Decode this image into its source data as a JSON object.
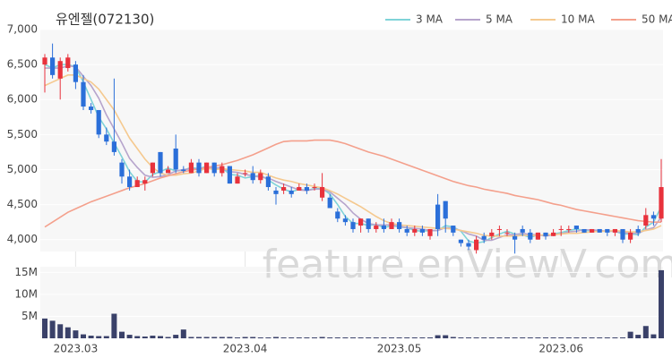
{
  "chart_data": [
    {
      "type": "candlestick",
      "title": "유엔젤(072130)",
      "watermark": "feature.enViewV.com",
      "categories": [
        null,
        null,
        null,
        null,
        "2023.03",
        null,
        null,
        null,
        null,
        null,
        null,
        null,
        null,
        null,
        null,
        null,
        null,
        null,
        null,
        null,
        null,
        null,
        null,
        null,
        null,
        null,
        "2023.04",
        null,
        null,
        null,
        null,
        null,
        null,
        null,
        null,
        null,
        null,
        null,
        null,
        null,
        null,
        null,
        null,
        null,
        null,
        null,
        "2023.05",
        null,
        null,
        null,
        null,
        null,
        null,
        null,
        null,
        null,
        null,
        null,
        null,
        null,
        null,
        null,
        null,
        null,
        null,
        null,
        null,
        "2023.06",
        null,
        null,
        null,
        null,
        null,
        null,
        null,
        null,
        null,
        null,
        null,
        null,
        null
      ],
      "open": [
        6500,
        6600,
        6300,
        6450,
        6500,
        6250,
        5900,
        5850,
        5500,
        5400,
        5100,
        4900,
        4750,
        4800,
        4950,
        5250,
        4950,
        5300,
        5000,
        4950,
        5100,
        4950,
        5100,
        4950,
        5050,
        4800,
        4950,
        4950,
        4850,
        4900,
        4700,
        4700,
        4700,
        4700,
        4750,
        4750,
        4600,
        4600,
        4400,
        4300,
        4250,
        4200,
        4300,
        4150,
        4200,
        4150,
        4250,
        4150,
        4100,
        4150,
        4050,
        4500,
        4550,
        4200,
        4000,
        3950,
        3850,
        4050,
        4050,
        4150,
        4100,
        4050,
        4150,
        4100,
        4000,
        4100,
        4050,
        4150,
        4150,
        4200,
        4150,
        4100,
        4150,
        4150,
        4100,
        4150,
        4000,
        4150,
        4200,
        4350,
        4300
      ],
      "high": [
        6650,
        6800,
        6600,
        6650,
        6550,
        6350,
        5950,
        5850,
        5600,
        6300,
        5150,
        5000,
        4900,
        4900,
        5100,
        5250,
        5050,
        5500,
        5050,
        5150,
        5150,
        5100,
        5100,
        5100,
        5050,
        4950,
        5000,
        5050,
        5000,
        4950,
        4750,
        4800,
        4750,
        4800,
        4800,
        4800,
        4950,
        4650,
        4450,
        4350,
        4300,
        4300,
        4300,
        4250,
        4300,
        4300,
        4300,
        4200,
        4200,
        4200,
        4150,
        4650,
        4550,
        4200,
        4000,
        4000,
        4050,
        4100,
        4150,
        4200,
        4150,
        4100,
        4200,
        4150,
        4100,
        4100,
        4150,
        4200,
        4200,
        4200,
        4150,
        4150,
        4150,
        4150,
        4150,
        4150,
        4150,
        4200,
        4450,
        4400,
        5150
      ],
      "low": [
        6100,
        6300,
        6000,
        6400,
        6150,
        5850,
        5800,
        5450,
        5350,
        5200,
        4800,
        4700,
        4750,
        4700,
        4900,
        4900,
        4950,
        4950,
        4950,
        4950,
        4900,
        4950,
        4900,
        4900,
        4800,
        4800,
        4900,
        4800,
        4800,
        4700,
        4500,
        4650,
        4600,
        4700,
        4650,
        4700,
        4550,
        4450,
        4250,
        4200,
        4100,
        4100,
        4100,
        4100,
        4100,
        4150,
        4100,
        4050,
        4050,
        4050,
        4000,
        4050,
        4100,
        4050,
        3900,
        3850,
        3800,
        3950,
        4000,
        4050,
        4050,
        3800,
        4050,
        3950,
        4000,
        4000,
        4050,
        4050,
        4100,
        4100,
        4100,
        4100,
        4100,
        4050,
        4050,
        3950,
        3950,
        4050,
        4150,
        4200,
        4250
      ],
      "close": [
        6600,
        6350,
        6550,
        6600,
        6250,
        5900,
        5850,
        5500,
        5400,
        5250,
        4900,
        4750,
        4850,
        4850,
        5100,
        4950,
        5000,
        5000,
        4980,
        5100,
        4950,
        5100,
        4950,
        5050,
        4800,
        4900,
        4950,
        4850,
        4950,
        4750,
        4650,
        4750,
        4650,
        4750,
        4700,
        4750,
        4750,
        4450,
        4300,
        4250,
        4150,
        4300,
        4150,
        4200,
        4150,
        4250,
        4150,
        4100,
        4150,
        4100,
        4150,
        4150,
        4300,
        4100,
        3950,
        3900,
        4000,
        4000,
        4100,
        4150,
        4100,
        4000,
        4100,
        4000,
        4100,
        4050,
        4100,
        4150,
        4150,
        4150,
        4100,
        4150,
        4100,
        4100,
        4150,
        4000,
        4100,
        4100,
        4350,
        4300,
        4750
      ],
      "up_color": "#e8323c",
      "down_color": "#2b6fd9",
      "series": [
        {
          "name": "3 MA",
          "color": "#7fd3d8",
          "values": [
            6500,
            6450,
            6500,
            6500,
            6467,
            6250,
            6000,
            5750,
            5580,
            5380,
            5180,
            4970,
            4830,
            4820,
            4930,
            4970,
            5020,
            4980,
            4990,
            5030,
            5010,
            5050,
            5000,
            5030,
            4930,
            4920,
            4880,
            4900,
            4920,
            4850,
            4780,
            4720,
            4680,
            4720,
            4700,
            4730,
            4730,
            4650,
            4500,
            4330,
            4230,
            4230,
            4200,
            4220,
            4170,
            4200,
            4180,
            4170,
            4130,
            4120,
            4130,
            4130,
            4200,
            4180,
            4120,
            3980,
            3950,
            3970,
            4030,
            4080,
            4120,
            4080,
            4070,
            4030,
            4070,
            4050,
            4080,
            4100,
            4130,
            4150,
            4130,
            4130,
            4120,
            4120,
            4120,
            4080,
            4080,
            4070,
            4180,
            4250,
            4470
          ]
        },
        {
          "name": "5 MA",
          "color": "#b6a4cc",
          "values": [
            6450,
            6450,
            6450,
            6480,
            6470,
            6330,
            6200,
            6020,
            5780,
            5580,
            5380,
            5160,
            5030,
            4920,
            4890,
            4900,
            4930,
            4980,
            5000,
            5010,
            5010,
            5030,
            5020,
            5030,
            4970,
            4960,
            4930,
            4910,
            4890,
            4880,
            4830,
            4790,
            4750,
            4710,
            4700,
            4720,
            4720,
            4680,
            4590,
            4500,
            4380,
            4290,
            4230,
            4210,
            4210,
            4210,
            4190,
            4170,
            4160,
            4150,
            4130,
            4130,
            4170,
            4160,
            4130,
            4080,
            4050,
            3990,
            3990,
            4030,
            4070,
            4070,
            4090,
            4070,
            4070,
            4050,
            4070,
            4080,
            4110,
            4120,
            4140,
            4140,
            4130,
            4120,
            4120,
            4100,
            4090,
            4090,
            4140,
            4170,
            4320
          ]
        },
        {
          "name": "10 MA",
          "color": "#f5c98f",
          "values": [
            6200,
            6250,
            6300,
            6350,
            6350,
            6300,
            6250,
            6150,
            6000,
            5850,
            5650,
            5450,
            5300,
            5150,
            5030,
            4950,
            4920,
            4920,
            4940,
            4950,
            4980,
            5020,
            5000,
            5010,
            5000,
            4990,
            4980,
            4960,
            4960,
            4920,
            4880,
            4850,
            4830,
            4800,
            4780,
            4760,
            4740,
            4700,
            4650,
            4590,
            4530,
            4470,
            4400,
            4330,
            4270,
            4230,
            4210,
            4200,
            4190,
            4180,
            4170,
            4160,
            4160,
            4150,
            4130,
            4110,
            4090,
            4060,
            4050,
            4050,
            4050,
            4050,
            4060,
            4060,
            4060,
            4070,
            4070,
            4080,
            4090,
            4090,
            4100,
            4110,
            4120,
            4120,
            4130,
            4120,
            4110,
            4110,
            4130,
            4150,
            4200
          ]
        },
        {
          "name": "50 MA",
          "color": "#f4a08c",
          "values": [
            4180,
            4250,
            4320,
            4390,
            4440,
            4490,
            4540,
            4580,
            4620,
            4660,
            4700,
            4740,
            4770,
            4800,
            4840,
            4880,
            4910,
            4940,
            4970,
            4990,
            5010,
            5030,
            5050,
            5070,
            5100,
            5130,
            5170,
            5210,
            5260,
            5310,
            5360,
            5400,
            5410,
            5410,
            5410,
            5420,
            5420,
            5420,
            5400,
            5370,
            5330,
            5290,
            5250,
            5220,
            5190,
            5150,
            5110,
            5070,
            5030,
            4990,
            4950,
            4910,
            4870,
            4830,
            4800,
            4770,
            4750,
            4720,
            4700,
            4680,
            4660,
            4630,
            4610,
            4590,
            4570,
            4540,
            4510,
            4490,
            4460,
            4430,
            4410,
            4390,
            4370,
            4350,
            4330,
            4310,
            4290,
            4270,
            4260,
            4250,
            4250
          ]
        }
      ],
      "ylim": [
        3830,
        7000
      ],
      "yticks": [
        {
          "value": 4000,
          "label": "4,000"
        },
        {
          "value": 4500,
          "label": "4,500"
        },
        {
          "value": 5000,
          "label": "5,000"
        },
        {
          "value": 5500,
          "label": "5,500"
        },
        {
          "value": 6000,
          "label": "6,000"
        },
        {
          "value": 6500,
          "label": "6,500"
        },
        {
          "value": 7000,
          "label": "7,000"
        }
      ],
      "grid": true
    },
    {
      "type": "bar",
      "color": "#3a4169",
      "values": [
        4500000,
        4000000,
        3200000,
        2500000,
        1800000,
        900000,
        600000,
        500000,
        500000,
        5600000,
        1500000,
        800000,
        500000,
        400000,
        600000,
        500000,
        300000,
        800000,
        2000000,
        300000,
        300000,
        300000,
        300000,
        300000,
        300000,
        200000,
        300000,
        300000,
        200000,
        200000,
        300000,
        200000,
        200000,
        200000,
        200000,
        200000,
        300000,
        200000,
        200000,
        200000,
        200000,
        200000,
        200000,
        200000,
        200000,
        200000,
        200000,
        200000,
        200000,
        200000,
        200000,
        700000,
        700000,
        300000,
        200000,
        200000,
        200000,
        200000,
        200000,
        200000,
        200000,
        200000,
        200000,
        200000,
        200000,
        200000,
        200000,
        200000,
        200000,
        200000,
        200000,
        200000,
        200000,
        200000,
        200000,
        200000,
        1500000,
        800000,
        2800000,
        900000,
        15500000
      ],
      "ylim": [
        0,
        16300000
      ],
      "yticks": [
        {
          "value": 5000000,
          "label": "5M"
        },
        {
          "value": 10000000,
          "label": "10M"
        },
        {
          "value": 15000000,
          "label": "15M"
        }
      ],
      "grid": true
    }
  ]
}
